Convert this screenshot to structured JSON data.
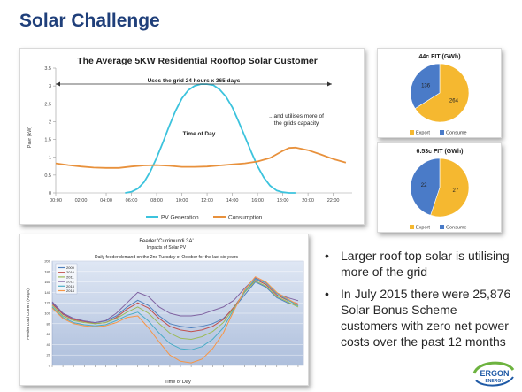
{
  "slide": {
    "title": "Solar Challenge",
    "bullets": [
      "Larger roof top solar is utilising more of the grid",
      "In July 2015 there were 25,876 Solar Bonus Scheme customers with zero net power costs over the past 12 months"
    ],
    "logo_text": [
      "ERGON",
      "ENERGY"
    ]
  },
  "colors": {
    "pv": "#3cc3dd",
    "consumption": "#e8913c",
    "pie_export": "#f5b830",
    "pie_consume": "#4a7bc8",
    "title": "#1f3f7a"
  },
  "chart_data": [
    {
      "type": "line",
      "title": "The Average 5KW Residential Rooftop Solar Customer",
      "xlabel": "Time of Day",
      "ylabel": "Pavr (kW)",
      "ylim": [
        0,
        3.5
      ],
      "yticks": [
        "0",
        "0.5",
        "1",
        "1.5",
        "2",
        "2.5",
        "3",
        "3.5"
      ],
      "xlim": [
        0,
        23.5
      ],
      "xtick_labels": [
        "00:00",
        "02:00",
        "04:00",
        "06:00",
        "08:00",
        "10:00",
        "12:00",
        "14:00",
        "16:00",
        "18:00",
        "20:00",
        "22:00"
      ],
      "xtick_values": [
        0,
        2,
        4,
        6,
        8,
        10,
        12,
        14,
        16,
        18,
        20,
        22
      ],
      "grid": false,
      "legend": "bottom",
      "annotations": [
        "Uses the grid 24 hours x 365 days",
        "...and utilises more of the grids capacity"
      ],
      "series": [
        {
          "name": "PV Generation",
          "x": [
            5.5,
            6,
            6.5,
            7,
            7.5,
            8,
            8.5,
            9,
            9.5,
            10,
            10.5,
            11,
            11.5,
            12,
            12.5,
            13,
            13.5,
            14,
            14.5,
            15,
            15.5,
            16,
            16.5,
            17,
            17.5,
            18,
            18.5,
            19
          ],
          "y": [
            0,
            0.03,
            0.12,
            0.3,
            0.6,
            0.98,
            1.42,
            1.88,
            2.3,
            2.65,
            2.88,
            3.0,
            3.05,
            3.05,
            3.02,
            2.9,
            2.7,
            2.4,
            2.0,
            1.58,
            1.15,
            0.75,
            0.43,
            0.2,
            0.07,
            0.02,
            0.0,
            0.0
          ]
        },
        {
          "name": "Consumption",
          "x": [
            0,
            1,
            2,
            3,
            4,
            5,
            6,
            7,
            8,
            9,
            10,
            11,
            12,
            13,
            14,
            15,
            16,
            17,
            18,
            18.5,
            19,
            20,
            21,
            22,
            23
          ],
          "y": [
            0.83,
            0.78,
            0.74,
            0.71,
            0.7,
            0.7,
            0.74,
            0.77,
            0.78,
            0.76,
            0.73,
            0.73,
            0.74,
            0.77,
            0.8,
            0.83,
            0.88,
            0.98,
            1.18,
            1.26,
            1.27,
            1.2,
            1.08,
            0.95,
            0.85
          ]
        }
      ]
    },
    {
      "type": "pie",
      "title": "44c FIT (GWh)",
      "slices": [
        {
          "label": "Export",
          "value": 264
        },
        {
          "label": "Consume",
          "value": 136
        }
      ],
      "legend": "bottom"
    },
    {
      "type": "pie",
      "title": "6.53c FIT (GWh)",
      "slices": [
        {
          "label": "Export",
          "value": 27
        },
        {
          "label": "Consume",
          "value": 22
        }
      ],
      "legend": "bottom"
    },
    {
      "type": "line",
      "title": "Feeder 'Currimundi 3A'",
      "subtitle": "Impacts of Solar PV",
      "caption": "Daily feeder demand on the 2nd Tuesday of October for the last six years",
      "xlabel": "Time of Day",
      "ylabel": "Feeder Load Current (Amps)",
      "ylim": [
        0,
        200
      ],
      "yticks": [
        "0",
        "20",
        "40",
        "60",
        "80",
        "100",
        "120",
        "140",
        "160",
        "180",
        "200"
      ],
      "xlim": [
        0,
        23.5
      ],
      "grid": true,
      "legend": "top-left",
      "series": [
        {
          "name": "2009",
          "color": "#4f81bd",
          "x": [
            0,
            1,
            2,
            3,
            4,
            5,
            6,
            7,
            8,
            9,
            10,
            11,
            12,
            13,
            14,
            15,
            16,
            17,
            18,
            19,
            20,
            21,
            22,
            23
          ],
          "y": [
            120,
            100,
            90,
            85,
            82,
            85,
            95,
            112,
            125,
            115,
            95,
            80,
            75,
            72,
            75,
            80,
            90,
            110,
            135,
            160,
            150,
            130,
            120,
            115
          ]
        },
        {
          "name": "2010",
          "color": "#c0504d",
          "x": [
            0,
            1,
            2,
            3,
            4,
            5,
            6,
            7,
            8,
            9,
            10,
            11,
            12,
            13,
            14,
            15,
            16,
            17,
            18,
            19,
            20,
            21,
            22,
            23
          ],
          "y": [
            118,
            98,
            88,
            84,
            80,
            82,
            92,
            108,
            120,
            110,
            90,
            75,
            68,
            65,
            68,
            75,
            88,
            112,
            140,
            165,
            155,
            135,
            125,
            118
          ]
        },
        {
          "name": "2011",
          "color": "#9bbb59",
          "x": [
            0,
            1,
            2,
            3,
            4,
            5,
            6,
            7,
            8,
            9,
            10,
            11,
            12,
            13,
            14,
            15,
            16,
            17,
            18,
            19,
            20,
            21,
            22,
            23
          ],
          "y": [
            115,
            95,
            86,
            82,
            80,
            82,
            90,
            102,
            112,
            100,
            80,
            62,
            52,
            50,
            55,
            65,
            82,
            110,
            140,
            162,
            152,
            132,
            122,
            112
          ]
        },
        {
          "name": "2012",
          "color": "#8064a2",
          "x": [
            0,
            1,
            2,
            3,
            4,
            5,
            6,
            7,
            8,
            9,
            10,
            11,
            12,
            13,
            14,
            15,
            16,
            17,
            18,
            19,
            20,
            21,
            22,
            23
          ],
          "y": [
            122,
            100,
            90,
            85,
            82,
            86,
            100,
            120,
            140,
            132,
            112,
            100,
            95,
            95,
            98,
            105,
            112,
            125,
            148,
            168,
            158,
            138,
            130,
            124
          ]
        },
        {
          "name": "2013",
          "color": "#4bacc6",
          "x": [
            0,
            1,
            2,
            3,
            4,
            5,
            6,
            7,
            8,
            9,
            10,
            11,
            12,
            13,
            14,
            15,
            16,
            17,
            18,
            19,
            20,
            21,
            22,
            23
          ],
          "y": [
            112,
            92,
            82,
            78,
            76,
            78,
            86,
            96,
            102,
            85,
            62,
            42,
            32,
            30,
            36,
            50,
            72,
            108,
            142,
            166,
            158,
            138,
            126,
            114
          ]
        },
        {
          "name": "2014",
          "color": "#f79646",
          "x": [
            0,
            1,
            2,
            3,
            4,
            5,
            6,
            7,
            8,
            9,
            10,
            11,
            12,
            13,
            14,
            15,
            16,
            17,
            18,
            19,
            20,
            21,
            22,
            23
          ],
          "y": [
            110,
            90,
            80,
            76,
            74,
            76,
            82,
            92,
            95,
            72,
            45,
            20,
            8,
            5,
            12,
            32,
            62,
            105,
            145,
            170,
            160,
            140,
            128,
            116
          ]
        }
      ]
    }
  ]
}
